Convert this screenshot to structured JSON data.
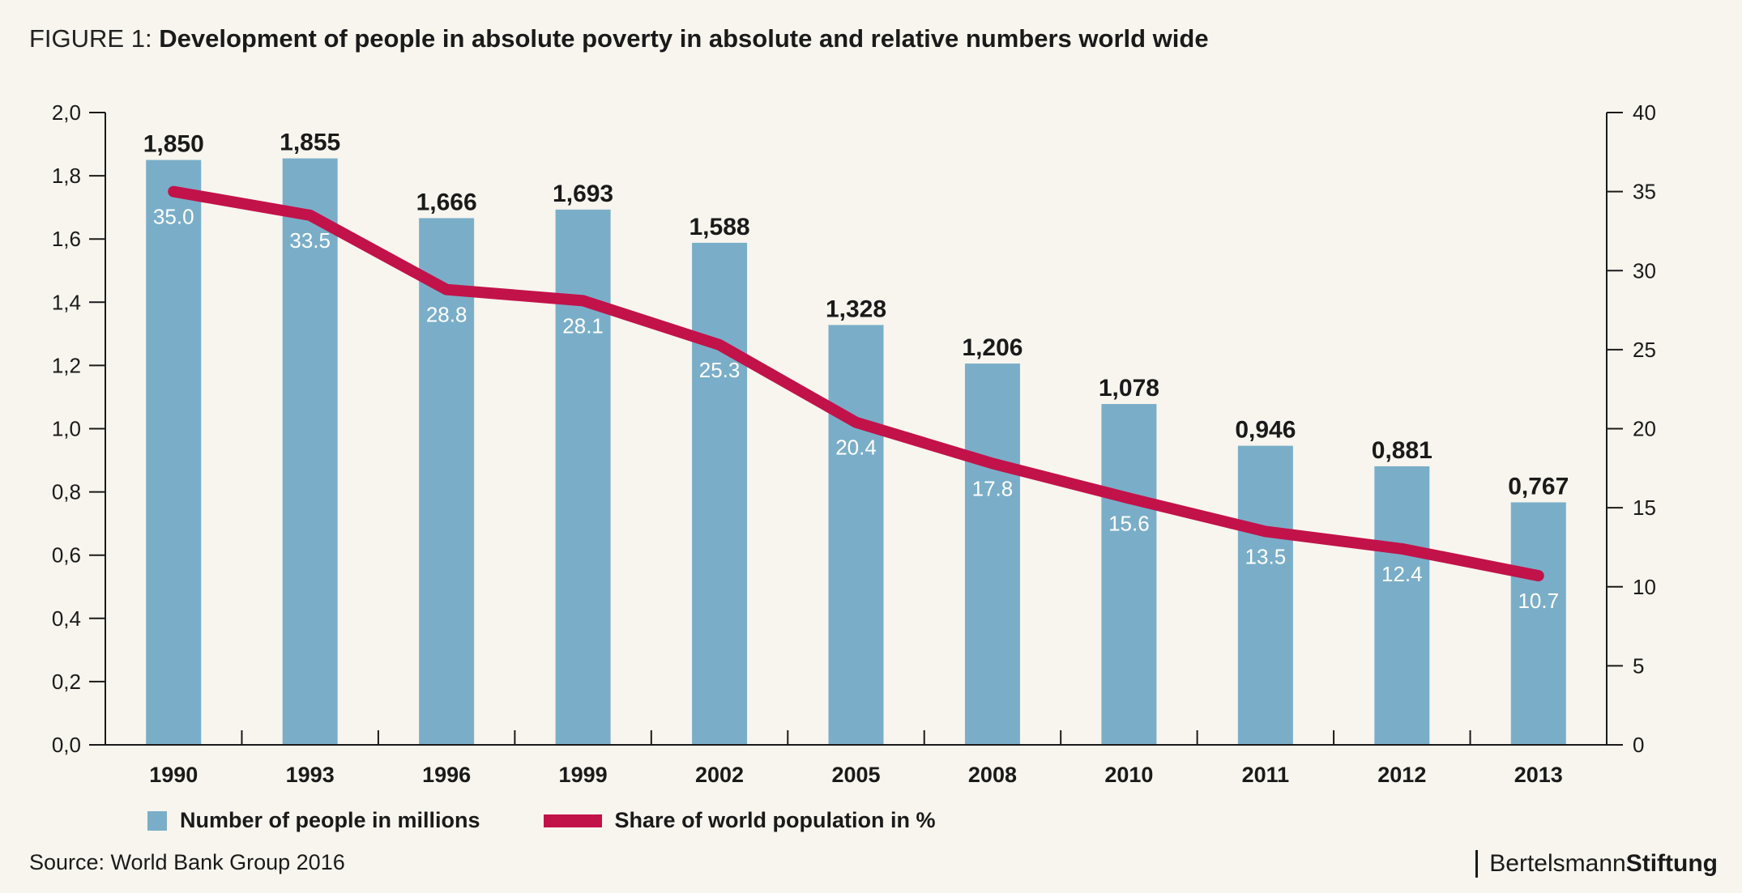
{
  "figure": {
    "prefix": "FIGURE 1:",
    "title": "Development of people in absolute poverty in absolute and relative numbers world wide",
    "source": "Source: World Bank Group 2016",
    "brand_part1": "Bertelsmann",
    "brand_part2": "Stiftung"
  },
  "colors": {
    "bar": "#7aaec8",
    "line": "#c2124a",
    "background": "#f7f5ee"
  },
  "chart_data": {
    "type": "bar",
    "title": "Development of people in absolute poverty in absolute and relative numbers world wide",
    "categories": [
      "1990",
      "1993",
      "1996",
      "1999",
      "2002",
      "2005",
      "2008",
      "2010",
      "2011",
      "2012",
      "2013"
    ],
    "series": [
      {
        "name": "Number of people in millions",
        "type": "bar",
        "axis": "left",
        "values": [
          1.85,
          1.855,
          1.666,
          1.693,
          1.588,
          1.328,
          1.206,
          1.078,
          0.946,
          0.881,
          0.767
        ],
        "labels": [
          "1,850",
          "1,855",
          "1,666",
          "1,693",
          "1,588",
          "1,328",
          "1,206",
          "1,078",
          "0,946",
          "0,881",
          "0,767"
        ]
      },
      {
        "name": "Share of world population in %",
        "type": "line",
        "axis": "right",
        "values": [
          35.0,
          33.5,
          28.8,
          28.1,
          25.3,
          20.4,
          17.8,
          15.6,
          13.5,
          12.4,
          10.7
        ],
        "labels": [
          "35.0",
          "33.5",
          "28.8",
          "28.1",
          "25.3",
          "20.4",
          "17.8",
          "15.6",
          "13.5",
          "12.4",
          "10.7"
        ]
      }
    ],
    "y_left": {
      "min": 0,
      "max": 2.0,
      "ticks": [
        "0,0",
        "0,2",
        "0,4",
        "0,6",
        "0,8",
        "1,0",
        "1,2",
        "1,4",
        "1,6",
        "1,8",
        "2,0"
      ]
    },
    "y_right": {
      "min": 0,
      "max": 40,
      "ticks": [
        "0",
        "5",
        "10",
        "15",
        "20",
        "25",
        "30",
        "35",
        "40"
      ]
    },
    "grid": false,
    "legend_position": "bottom-left"
  }
}
